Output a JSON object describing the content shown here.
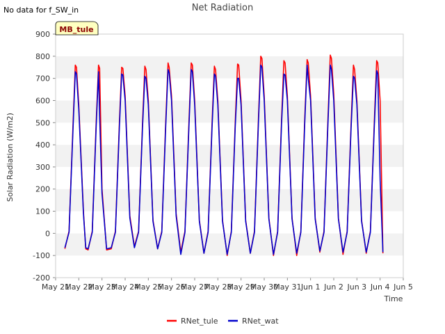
{
  "nodata_text": "No data for f_SW_in",
  "site_badge": "MB_tule",
  "chart_data": {
    "type": "line",
    "title": "Net Radiation",
    "xlabel": "Time",
    "ylabel": "Solar Radiation (W/m2)",
    "ylim": [
      -200,
      900
    ],
    "yticks": [
      -200,
      -100,
      0,
      100,
      200,
      300,
      400,
      500,
      600,
      700,
      800,
      900
    ],
    "xlim": [
      21,
      36
    ],
    "xtick_labels": [
      "May 21",
      "May 22",
      "May 23",
      "May 24",
      "May 25",
      "May 26",
      "May 27",
      "May 28",
      "May 29",
      "May 30",
      "May 31",
      "Jun 1",
      "Jun 2",
      "Jun 3",
      "Jun 4",
      "Jun 5"
    ],
    "grid": "horizontal bands",
    "legend_position": "bottom-center",
    "series": [
      {
        "name": "RNet_tule",
        "color": "#ff0000",
        "x": [
          21.4,
          21.58,
          21.75,
          21.85,
          21.9,
          22.0,
          22.2,
          22.3,
          22.4,
          22.58,
          22.75,
          22.85,
          22.9,
          23.0,
          23.2,
          23.4,
          23.58,
          23.75,
          23.85,
          23.9,
          24.0,
          24.2,
          24.4,
          24.58,
          24.75,
          24.85,
          24.9,
          25.0,
          25.2,
          25.4,
          25.58,
          25.75,
          25.85,
          25.9,
          26.0,
          26.2,
          26.4,
          26.58,
          26.75,
          26.85,
          26.9,
          27.0,
          27.2,
          27.4,
          27.58,
          27.75,
          27.85,
          27.9,
          28.0,
          28.2,
          28.4,
          28.58,
          28.75,
          28.85,
          28.9,
          29.0,
          29.2,
          29.4,
          29.58,
          29.75,
          29.85,
          29.9,
          30.0,
          30.2,
          30.4,
          30.58,
          30.75,
          30.85,
          30.9,
          31.0,
          31.2,
          31.4,
          31.58,
          31.75,
          31.85,
          31.9,
          32.0,
          32.2,
          32.4,
          32.58,
          32.75,
          32.85,
          32.9,
          33.0,
          33.2,
          33.4,
          33.58,
          33.75,
          33.85,
          33.9,
          34.0,
          34.2,
          34.4,
          34.58,
          34.75,
          34.85,
          34.9,
          35.0,
          35.12
        ],
        "y": [
          -70,
          10,
          490,
          760,
          750,
          580,
          100,
          -70,
          -75,
          10,
          500,
          760,
          745,
          200,
          -75,
          -70,
          10,
          500,
          750,
          745,
          620,
          80,
          -60,
          10,
          500,
          755,
          740,
          600,
          60,
          -70,
          10,
          500,
          770,
          750,
          620,
          90,
          -85,
          10,
          500,
          770,
          760,
          600,
          60,
          -90,
          10,
          500,
          755,
          740,
          600,
          60,
          -100,
          10,
          500,
          765,
          760,
          600,
          60,
          -90,
          10,
          520,
          800,
          790,
          620,
          70,
          -100,
          10,
          520,
          780,
          770,
          620,
          70,
          -100,
          10,
          520,
          785,
          770,
          620,
          70,
          -85,
          10,
          520,
          805,
          790,
          630,
          70,
          -95,
          10,
          500,
          760,
          740,
          600,
          60,
          -90,
          10,
          500,
          780,
          770,
          600,
          -90
        ]
      },
      {
        "name": "RNet_wat",
        "color": "#0000cc",
        "x": [
          21.4,
          21.58,
          21.75,
          21.85,
          21.9,
          22.0,
          22.2,
          22.3,
          22.4,
          22.58,
          22.75,
          22.85,
          22.9,
          23.0,
          23.2,
          23.4,
          23.58,
          23.75,
          23.85,
          23.9,
          24.0,
          24.2,
          24.4,
          24.58,
          24.75,
          24.85,
          24.9,
          25.0,
          25.2,
          25.4,
          25.58,
          25.75,
          25.85,
          25.9,
          26.0,
          26.2,
          26.4,
          26.58,
          26.75,
          26.85,
          26.9,
          27.0,
          27.2,
          27.4,
          27.58,
          27.75,
          27.85,
          27.9,
          28.0,
          28.2,
          28.4,
          28.58,
          28.75,
          28.85,
          28.9,
          29.0,
          29.2,
          29.4,
          29.58,
          29.75,
          29.85,
          29.9,
          30.0,
          30.2,
          30.4,
          30.58,
          30.75,
          30.85,
          30.9,
          31.0,
          31.2,
          31.4,
          31.58,
          31.75,
          31.85,
          31.9,
          32.0,
          32.2,
          32.4,
          32.58,
          32.75,
          32.85,
          32.9,
          33.0,
          33.2,
          33.4,
          33.58,
          33.75,
          33.85,
          33.9,
          34.0,
          34.2,
          34.4,
          34.58,
          34.75,
          34.85,
          34.9,
          35.0,
          35.12
        ],
        "y": [
          -65,
          5,
          470,
          730,
          720,
          560,
          90,
          -65,
          -70,
          5,
          480,
          730,
          530,
          180,
          -70,
          -65,
          5,
          480,
          720,
          715,
          600,
          70,
          -65,
          5,
          480,
          710,
          700,
          580,
          55,
          -70,
          5,
          480,
          740,
          725,
          600,
          80,
          -95,
          5,
          480,
          740,
          730,
          580,
          55,
          -90,
          5,
          480,
          720,
          710,
          580,
          55,
          -95,
          5,
          480,
          700,
          700,
          580,
          55,
          -90,
          5,
          500,
          760,
          750,
          600,
          65,
          -95,
          5,
          500,
          720,
          715,
          600,
          65,
          -90,
          5,
          500,
          760,
          700,
          600,
          65,
          -80,
          5,
          500,
          760,
          740,
          600,
          65,
          -85,
          5,
          480,
          710,
          700,
          580,
          55,
          -85,
          5,
          480,
          735,
          720,
          240,
          -85
        ]
      }
    ]
  }
}
